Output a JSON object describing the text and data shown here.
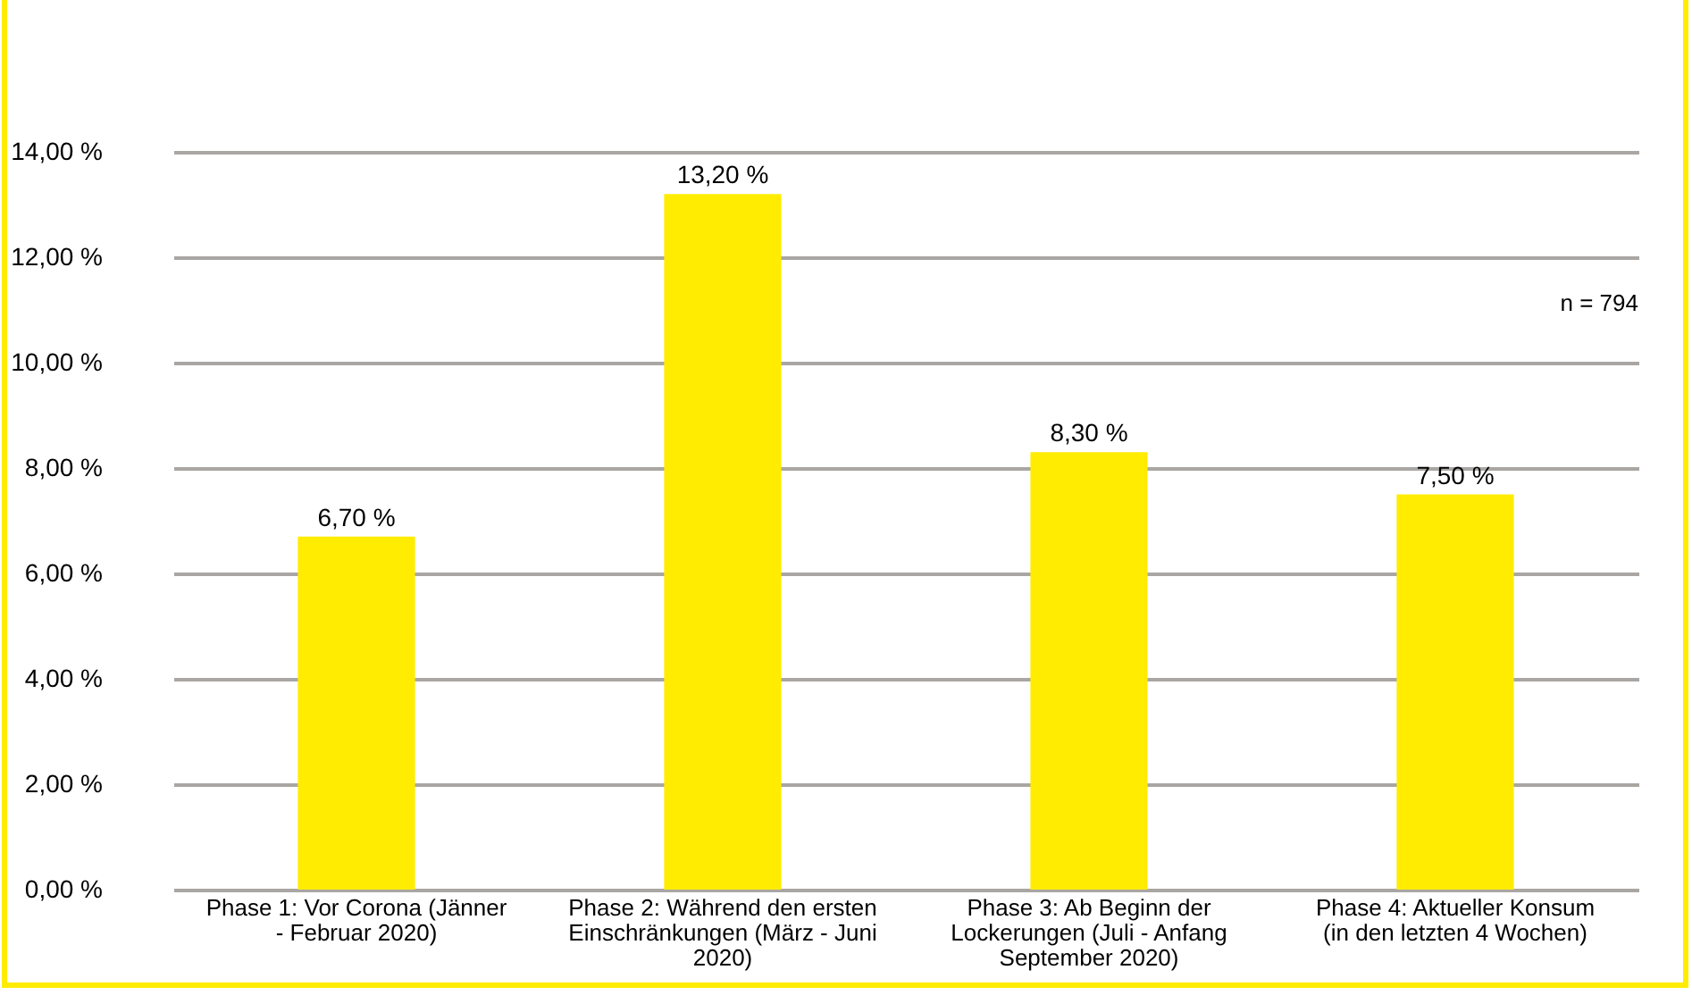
{
  "chart_data": {
    "type": "bar",
    "categories": [
      "Phase 1: Vor Corona (Jänner - Februar 2020)",
      "Phase 2: Während den ersten Einschränkungen (März - Juni 2020)",
      "Phase 3: Ab Beginn der Lockerungen (Juli - Anfang September 2020)",
      "Phase 4: Aktueller Konsum (in den letzten 4 Wochen)"
    ],
    "values": [
      6.7,
      13.2,
      8.3,
      7.5
    ],
    "value_labels": [
      "6,70 %",
      "13,20 %",
      "8,30 %",
      "7,50 %"
    ],
    "color": "#ffec00",
    "ylim": [
      0,
      14
    ],
    "yticks": [
      {
        "value": 0,
        "label": "0,00 %"
      },
      {
        "value": 2,
        "label": "2,00 %"
      },
      {
        "value": 4,
        "label": "4,00 %"
      },
      {
        "value": 6,
        "label": "6,00 %"
      },
      {
        "value": 8,
        "label": "8,00 %"
      },
      {
        "value": 10,
        "label": "10,00 %"
      },
      {
        "value": 12,
        "label": "12,00 %"
      },
      {
        "value": 14,
        "label": "14,00 %"
      }
    ],
    "grid": "y",
    "annotations": [
      "n = 794"
    ]
  }
}
